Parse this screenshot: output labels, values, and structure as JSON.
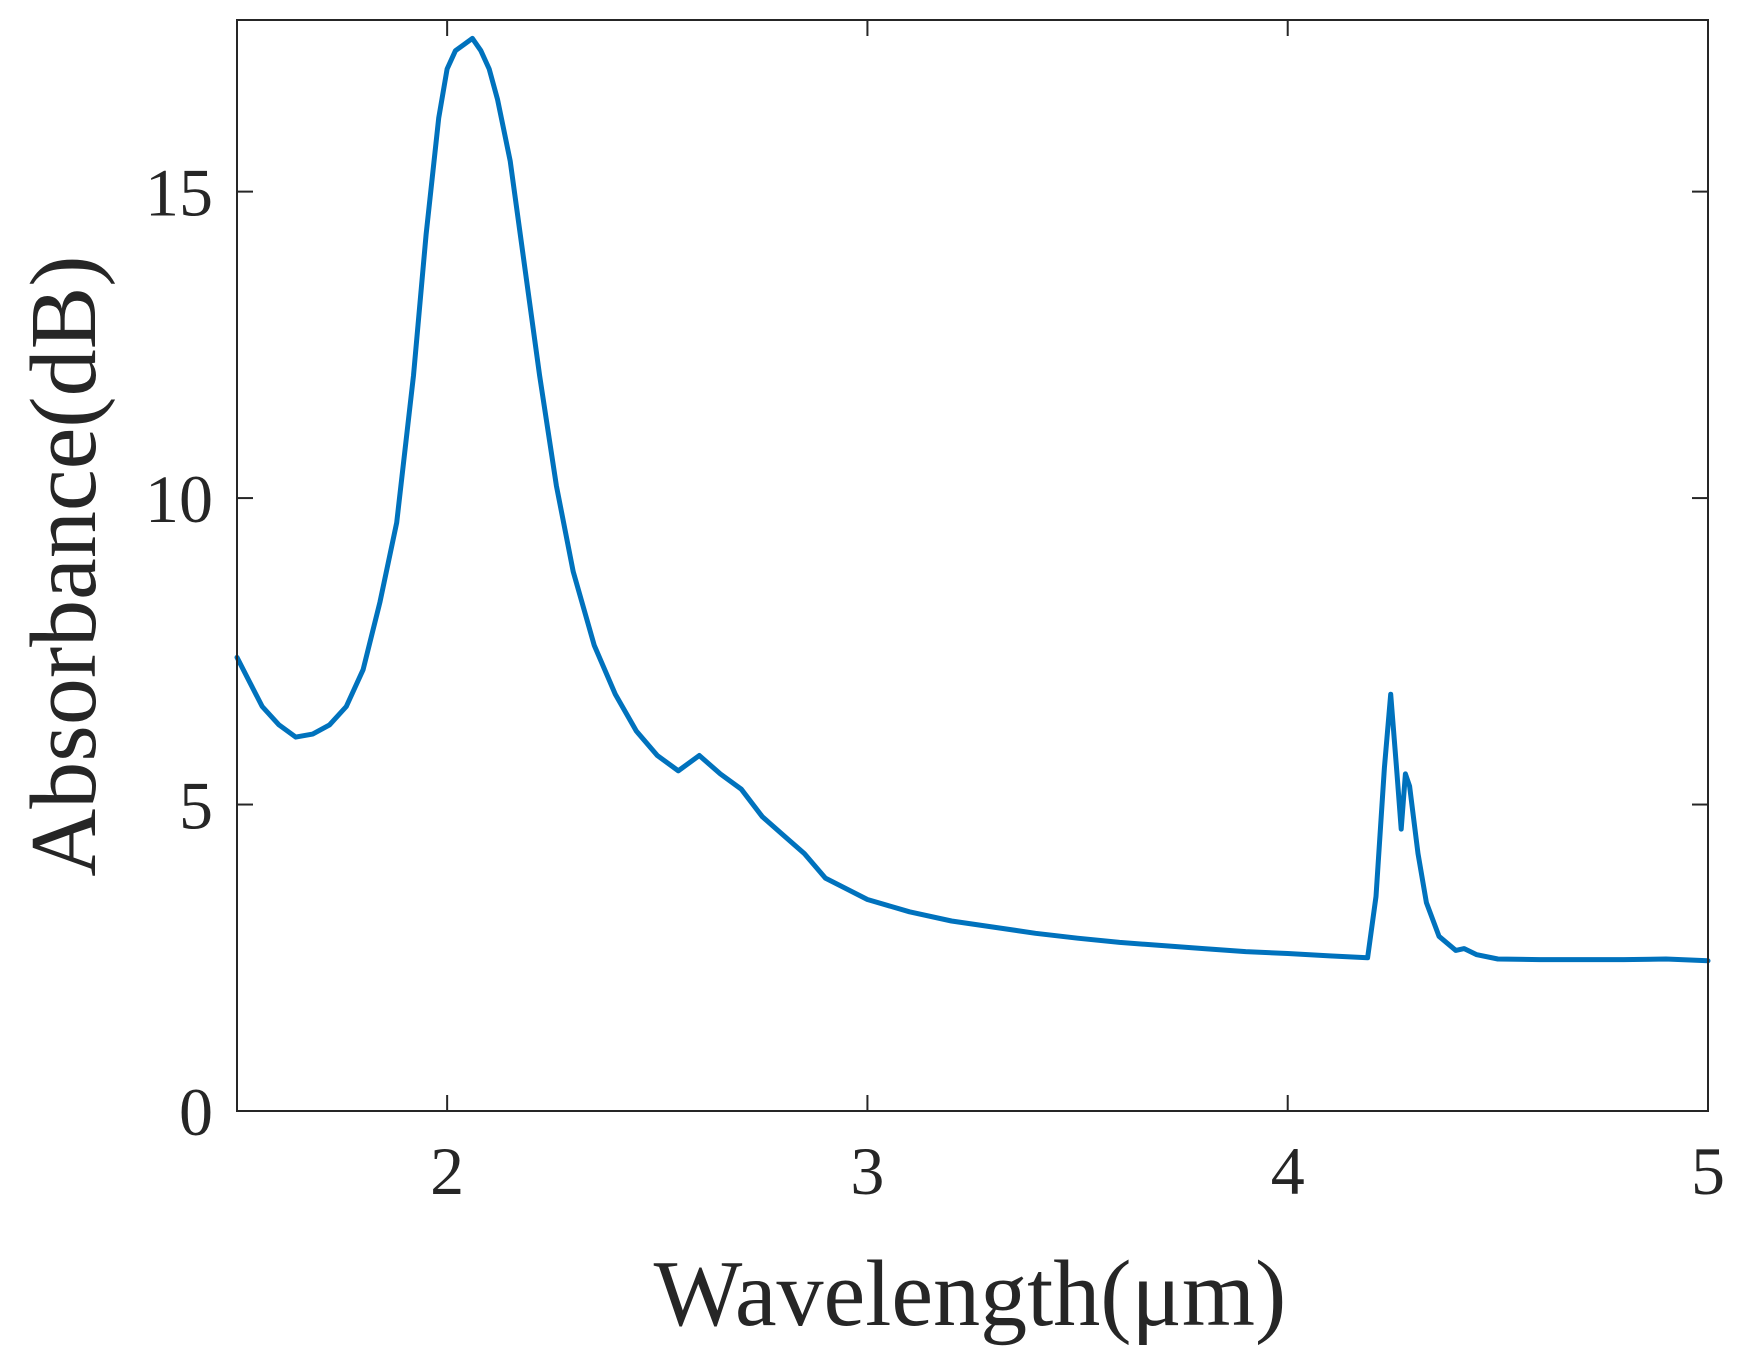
{
  "chart_data": {
    "type": "line",
    "title": "",
    "xlabel": "Wavelength(μm)",
    "ylabel": "Absorbance(dB)",
    "xlim": [
      1.5,
      5
    ],
    "ylim": [
      0,
      17.8
    ],
    "xticks": [
      2,
      3,
      4,
      5
    ],
    "yticks": [
      0,
      5,
      10,
      15
    ],
    "xtick_labels": [
      "2",
      "3",
      "4",
      "5"
    ],
    "ytick_labels": [
      "0",
      "5",
      "10",
      "15"
    ],
    "grid": false,
    "legend": "none",
    "colors": {
      "line": "#0072BD",
      "axis": "#262626"
    },
    "series": [
      {
        "name": "Absorbance",
        "x": [
          1.5,
          1.53,
          1.56,
          1.6,
          1.64,
          1.68,
          1.72,
          1.76,
          1.8,
          1.84,
          1.88,
          1.92,
          1.95,
          1.98,
          2.0,
          2.02,
          2.04,
          2.06,
          2.08,
          2.1,
          2.12,
          2.15,
          2.18,
          2.22,
          2.26,
          2.3,
          2.35,
          2.4,
          2.45,
          2.5,
          2.55,
          2.6,
          2.65,
          2.7,
          2.75,
          2.8,
          2.85,
          2.9,
          3.0,
          3.1,
          3.2,
          3.3,
          3.4,
          3.5,
          3.6,
          3.7,
          3.8,
          3.9,
          4.0,
          4.1,
          4.19,
          4.21,
          4.23,
          4.245,
          4.26,
          4.27,
          4.28,
          4.29,
          4.31,
          4.33,
          4.36,
          4.4,
          4.42,
          4.45,
          4.5,
          4.6,
          4.7,
          4.8,
          4.9,
          5.0
        ],
        "values": [
          7.4,
          7.0,
          6.6,
          6.3,
          6.1,
          6.15,
          6.3,
          6.6,
          7.2,
          8.3,
          9.6,
          12.0,
          14.3,
          16.2,
          17.0,
          17.3,
          17.4,
          17.5,
          17.3,
          17.0,
          16.5,
          15.5,
          14.0,
          12.0,
          10.2,
          8.8,
          7.6,
          6.8,
          6.2,
          5.8,
          5.55,
          5.8,
          5.5,
          5.25,
          4.8,
          4.5,
          4.2,
          3.8,
          3.45,
          3.25,
          3.1,
          3.0,
          2.9,
          2.82,
          2.75,
          2.7,
          2.65,
          2.6,
          2.57,
          2.53,
          2.5,
          3.5,
          5.6,
          6.8,
          5.5,
          4.6,
          5.5,
          5.3,
          4.2,
          3.4,
          2.85,
          2.62,
          2.65,
          2.55,
          2.48,
          2.47,
          2.47,
          2.47,
          2.48,
          2.45
        ]
      }
    ]
  }
}
